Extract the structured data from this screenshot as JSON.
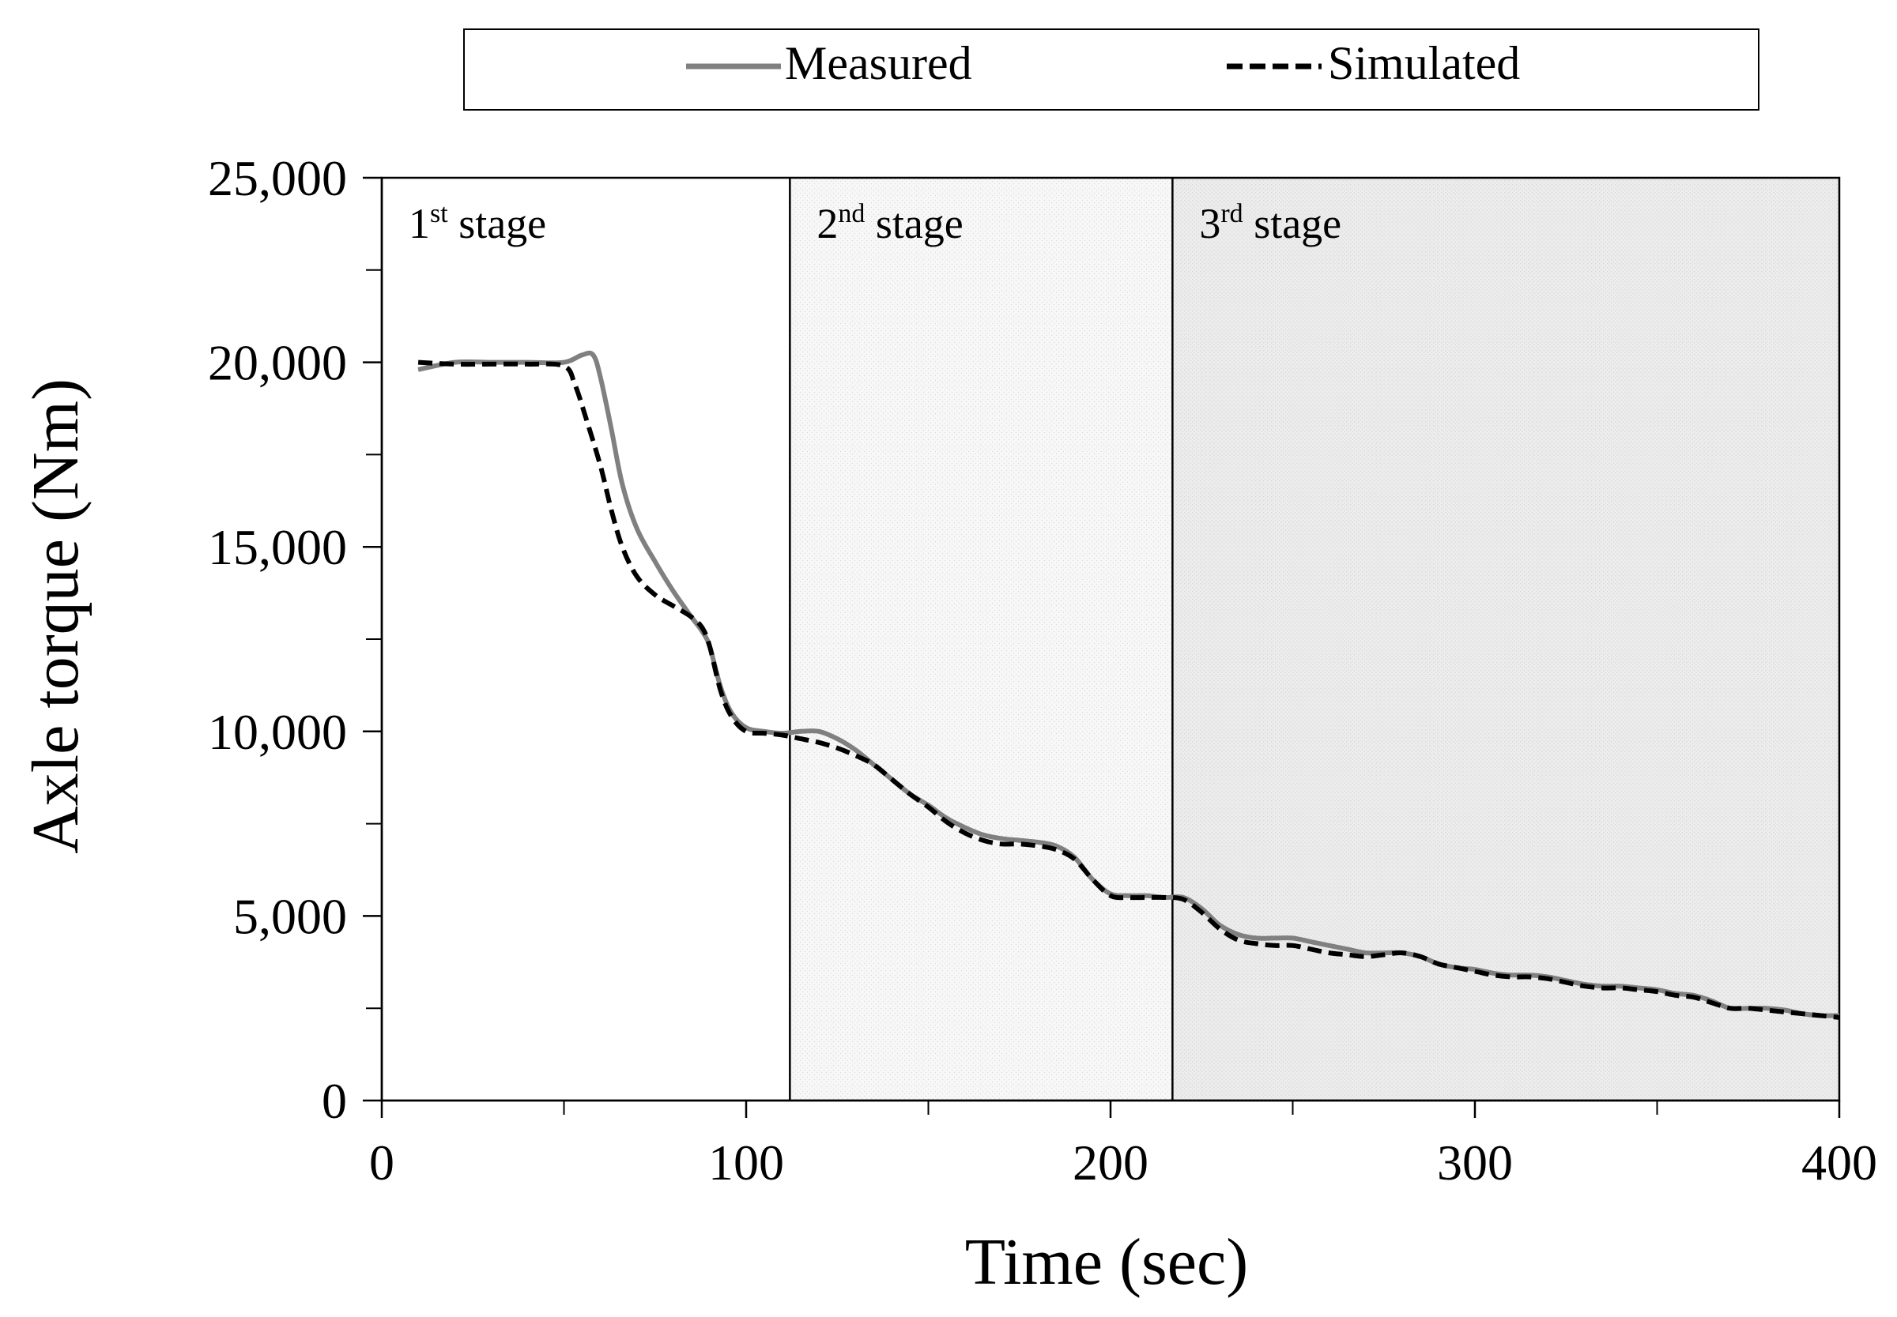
{
  "chart_data": {
    "type": "line",
    "xlabel": "Time (sec)",
    "ylabel": "Axle torque (Nm)",
    "xlim": [
      0,
      400
    ],
    "ylim": [
      0,
      25000
    ],
    "x_ticks": [
      0,
      100,
      200,
      300,
      400
    ],
    "x_tick_labels": [
      "0",
      "100",
      "200",
      "300",
      "400"
    ],
    "x_minor_ticks": [
      50,
      150,
      250,
      350
    ],
    "y_ticks": [
      0,
      5000,
      10000,
      15000,
      20000,
      25000
    ],
    "y_tick_labels": [
      "0",
      "5,000",
      "10,000",
      "15,000",
      "20,000",
      "25,000"
    ],
    "y_minor_ticks": [
      2500,
      7500,
      12500,
      17500,
      22500
    ],
    "grid": false,
    "legend_position": "top",
    "stage_boundaries": [
      112,
      217
    ],
    "stages": [
      {
        "label_num": "1",
        "label_sup": "st",
        "label_text": " stage",
        "x_start": 0,
        "x_end": 112,
        "fill": "#ffffff"
      },
      {
        "label_num": "2",
        "label_sup": "nd",
        "label_text": " stage",
        "x_start": 112,
        "x_end": 217,
        "fill": "#f6f6f6"
      },
      {
        "label_num": "3",
        "label_sup": "rd",
        "label_text": " stage",
        "x_start": 217,
        "x_end": 400,
        "fill": "#ebebeb"
      }
    ],
    "series": [
      {
        "name": "Measured",
        "color": "#808080",
        "dash": "solid",
        "x": [
          10,
          20,
          30,
          40,
          50,
          55,
          58,
          60,
          63,
          66,
          70,
          75,
          80,
          85,
          88,
          90,
          93,
          96,
          100,
          105,
          110,
          115,
          120,
          125,
          130,
          135,
          140,
          145,
          150,
          155,
          160,
          165,
          170,
          175,
          180,
          185,
          190,
          195,
          200,
          205,
          210,
          215,
          220,
          225,
          230,
          235,
          240,
          245,
          250,
          255,
          260,
          265,
          270,
          275,
          280,
          285,
          290,
          295,
          300,
          305,
          310,
          315,
          320,
          325,
          330,
          335,
          340,
          345,
          350,
          355,
          360,
          365,
          370,
          375,
          380,
          385,
          390,
          395,
          400
        ],
        "values": [
          19800,
          20000,
          20000,
          20000,
          20000,
          20200,
          20200,
          19600,
          18200,
          16700,
          15500,
          14600,
          13800,
          13100,
          12700,
          12300,
          11200,
          10500,
          10100,
          10000,
          9950,
          10000,
          10000,
          9800,
          9500,
          9100,
          8700,
          8300,
          8000,
          7650,
          7400,
          7200,
          7100,
          7050,
          7000,
          6900,
          6600,
          6000,
          5600,
          5550,
          5550,
          5500,
          5500,
          5200,
          4750,
          4500,
          4400,
          4400,
          4400,
          4300,
          4200,
          4100,
          4000,
          4000,
          4000,
          3900,
          3700,
          3600,
          3550,
          3450,
          3400,
          3400,
          3350,
          3250,
          3150,
          3100,
          3100,
          3050,
          3000,
          2900,
          2850,
          2700,
          2500,
          2500,
          2500,
          2450,
          2350,
          2300,
          2300
        ]
      },
      {
        "name": "Simulated",
        "color": "#000000",
        "dash": "dashed",
        "x": [
          10,
          20,
          30,
          40,
          50,
          53,
          56,
          60,
          63,
          66,
          70,
          75,
          80,
          85,
          88,
          90,
          93,
          96,
          100,
          105,
          110,
          115,
          120,
          125,
          130,
          135,
          140,
          145,
          150,
          155,
          160,
          165,
          170,
          175,
          180,
          185,
          190,
          195,
          200,
          205,
          210,
          215,
          220,
          225,
          230,
          235,
          240,
          245,
          250,
          255,
          260,
          265,
          270,
          275,
          280,
          285,
          290,
          295,
          300,
          305,
          310,
          315,
          320,
          325,
          330,
          335,
          340,
          345,
          350,
          355,
          360,
          365,
          370,
          375,
          380,
          385,
          390,
          395,
          400
        ],
        "values": [
          20000,
          19950,
          19950,
          19950,
          19900,
          19400,
          18500,
          17200,
          16000,
          15000,
          14200,
          13700,
          13400,
          13100,
          12800,
          12300,
          11100,
          10400,
          10000,
          9950,
          9900,
          9800,
          9700,
          9550,
          9350,
          9100,
          8700,
          8300,
          7950,
          7550,
          7250,
          7050,
          6950,
          6950,
          6900,
          6800,
          6550,
          6000,
          5550,
          5500,
          5500,
          5500,
          5450,
          5100,
          4650,
          4350,
          4250,
          4200,
          4200,
          4100,
          4000,
          3950,
          3900,
          3950,
          4000,
          3900,
          3700,
          3600,
          3500,
          3400,
          3350,
          3350,
          3300,
          3200,
          3100,
          3050,
          3050,
          3000,
          2950,
          2850,
          2800,
          2650,
          2500,
          2500,
          2450,
          2400,
          2350,
          2300,
          2250
        ]
      }
    ]
  }
}
